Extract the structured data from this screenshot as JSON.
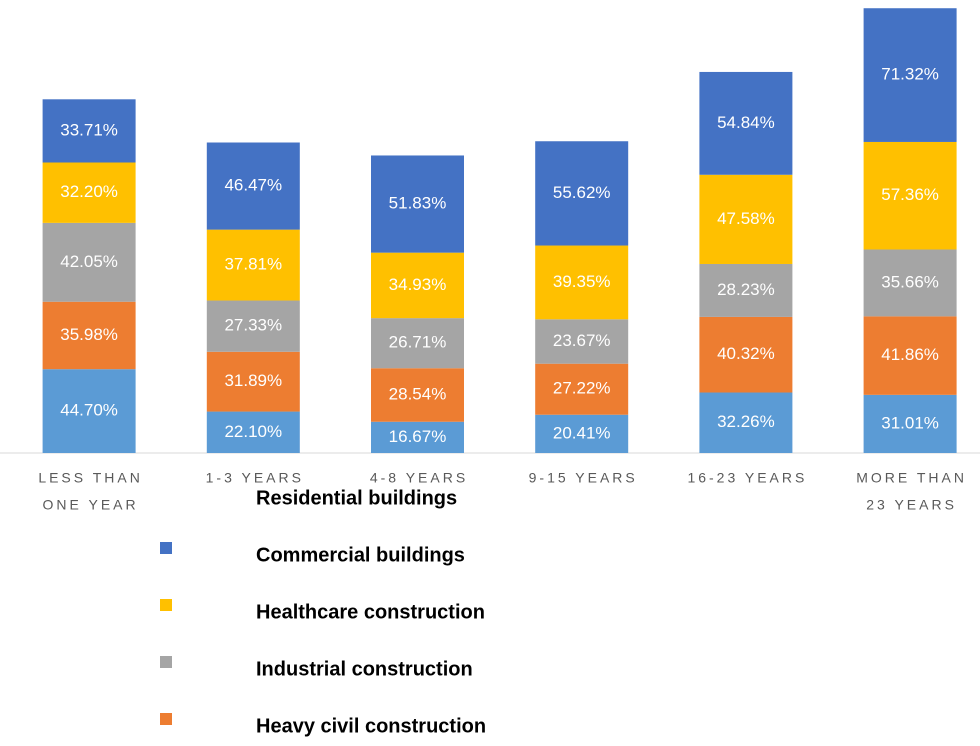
{
  "chart_data": {
    "type": "stacked_bar",
    "categories": [
      [
        "LESS THAN",
        "ONE YEAR"
      ],
      [
        "1-3 YEARS"
      ],
      [
        "4-8 YEARS"
      ],
      [
        "9-15 YEARS"
      ],
      [
        "16-23 YEARS"
      ],
      [
        "MORE THAN",
        "23 YEARS"
      ]
    ],
    "ylim": [
      0,
      240
    ],
    "series": [
      {
        "name": "Residential buildings",
        "color": "#4472c4",
        "values": [
          33.71,
          46.47,
          51.83,
          55.62,
          54.84,
          71.32
        ],
        "value_labels": [
          "33.71%",
          "46.47%",
          "51.83%",
          "55.62%",
          "54.84%",
          "71.32%"
        ]
      },
      {
        "name": "Commercial buildings",
        "color": "#ffc000",
        "values": [
          32.2,
          37.81,
          34.93,
          39.35,
          47.58,
          57.36
        ],
        "value_labels": [
          "32.20%",
          "37.81%",
          "34.93%",
          "39.35%",
          "47.58%",
          "57.36%"
        ]
      },
      {
        "name": "Healthcare construction",
        "color": "#a5a5a5",
        "values": [
          42.05,
          27.33,
          26.71,
          23.67,
          28.23,
          35.66
        ],
        "value_labels": [
          "42.05%",
          "27.33%",
          "26.71%",
          "23.67%",
          "28.23%",
          "35.66%"
        ]
      },
      {
        "name": "Industrial construction",
        "color": "#ed7d31",
        "values": [
          35.98,
          31.89,
          28.54,
          27.22,
          40.32,
          41.86
        ],
        "value_labels": [
          "35.98%",
          "31.89%",
          "28.54%",
          "27.22%",
          "40.32%",
          "41.86%"
        ]
      },
      {
        "name": "Heavy civil construction",
        "color": "#5b9bd5",
        "values": [
          44.7,
          22.1,
          16.67,
          20.41,
          32.26,
          31.01
        ],
        "value_labels": [
          "44.70%",
          "22.10%",
          "16.67%",
          "20.41%",
          "32.26%",
          "31.01%"
        ]
      }
    ]
  }
}
